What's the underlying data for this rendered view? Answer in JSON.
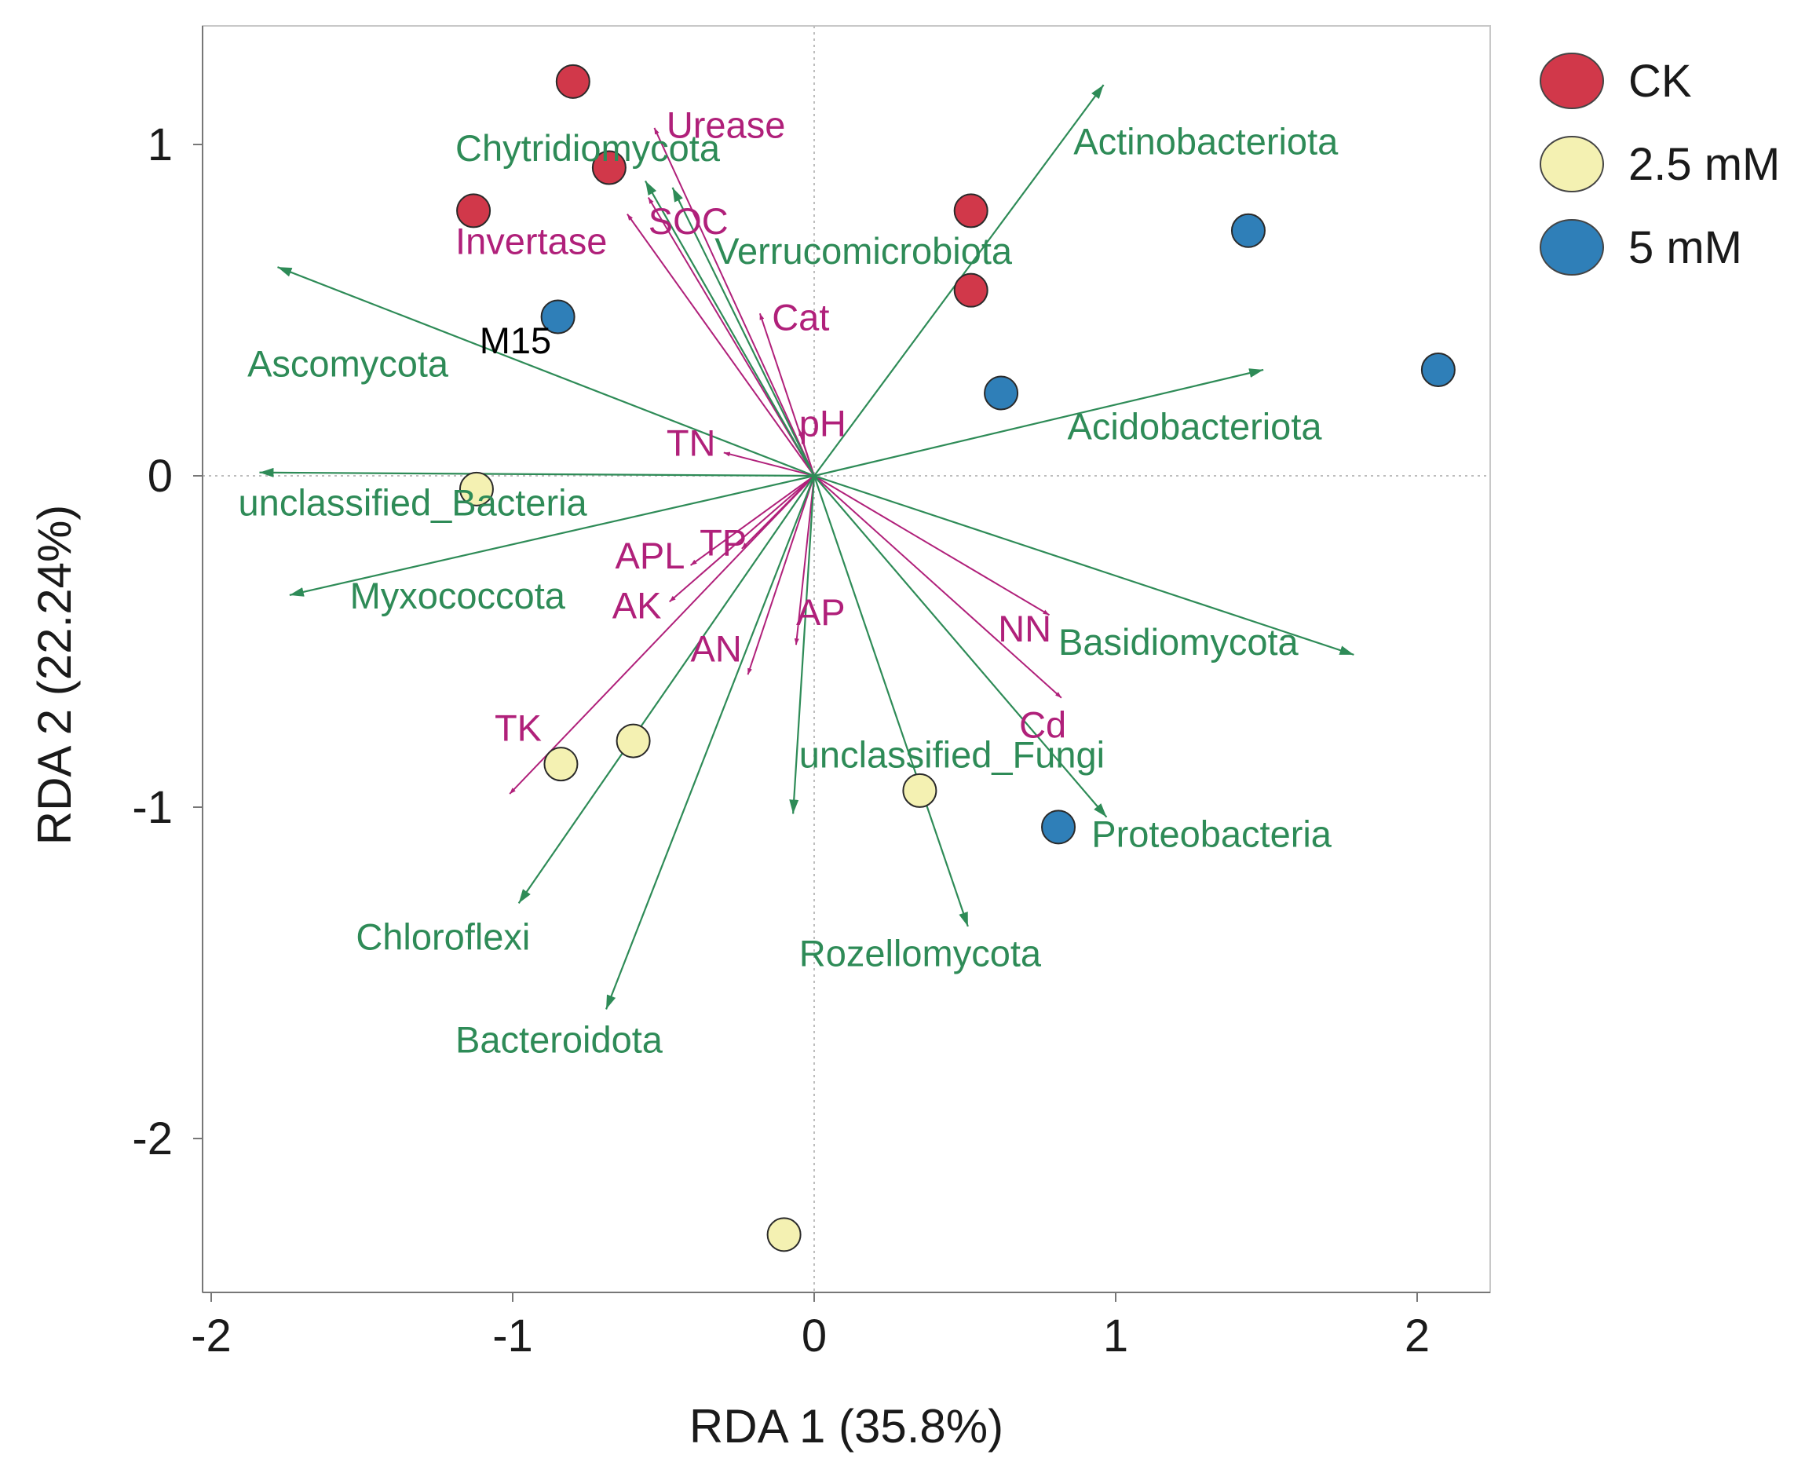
{
  "chart_data": {
    "type": "scatter",
    "subtype": "rda_biplot",
    "xlabel": "RDA 1 (35.8%)",
    "ylabel": "RDA 2 (22.24%)",
    "xlim": [
      -2.03,
      2.23
    ],
    "ylim": [
      -2.43,
      1.35
    ],
    "xticks": [
      -2,
      -1,
      0,
      1,
      2
    ],
    "yticks": [
      -2,
      -1,
      0,
      1
    ],
    "reference_lines": "dotted lines at x=0 and y=0",
    "colors": {
      "species_arrow": "#2e8b57",
      "env_arrow": "#b0207a",
      "CK": "#d1384a",
      "2.5 mM": "#f4f1b2",
      "5 mM": "#2f7fb8"
    },
    "legend": [
      {
        "label": "CK",
        "color": "#d1384a"
      },
      {
        "label": "2.5 mM",
        "color": "#f4f1b2"
      },
      {
        "label": "5 mM",
        "color": "#2f7fb8"
      }
    ],
    "samples": [
      {
        "group": "CK",
        "x": -0.8,
        "y": 1.19
      },
      {
        "group": "CK",
        "x": -0.68,
        "y": 0.93
      },
      {
        "group": "CK",
        "x": -1.13,
        "y": 0.8
      },
      {
        "group": "CK",
        "x": 0.52,
        "y": 0.8
      },
      {
        "group": "CK",
        "x": 0.52,
        "y": 0.56
      },
      {
        "group": "2.5 mM",
        "x": -1.12,
        "y": -0.04
      },
      {
        "group": "2.5 mM",
        "x": -0.84,
        "y": -0.87
      },
      {
        "group": "2.5 mM",
        "x": -0.6,
        "y": -0.8
      },
      {
        "group": "2.5 mM",
        "x": 0.35,
        "y": -0.95
      },
      {
        "group": "2.5 mM",
        "x": -0.1,
        "y": -2.29
      },
      {
        "group": "5 mM",
        "x": -0.85,
        "y": 0.48
      },
      {
        "group": "5 mM",
        "x": 0.62,
        "y": 0.25
      },
      {
        "group": "5 mM",
        "x": 1.44,
        "y": 0.74
      },
      {
        "group": "5 mM",
        "x": 2.07,
        "y": 0.32
      },
      {
        "group": "5 mM",
        "x": 0.81,
        "y": -1.06
      }
    ],
    "sample_labels": [
      {
        "text": "M15",
        "x": -1.11,
        "y": 0.37
      }
    ],
    "species": [
      {
        "name": "Actinobacteriota",
        "x": 0.96,
        "y": 1.18,
        "label_x": 0.86,
        "label_y": 0.97
      },
      {
        "name": "Acidobacteriota",
        "x": 1.49,
        "y": 0.32,
        "label_x": 0.84,
        "label_y": 0.11
      },
      {
        "name": "Basidiomycota",
        "x": 1.79,
        "y": -0.54,
        "label_x": 0.81,
        "label_y": -0.54
      },
      {
        "name": "Proteobacteria",
        "x": 0.97,
        "y": -1.03,
        "label_x": 0.92,
        "label_y": -1.12
      },
      {
        "name": "unclassified_Fungi",
        "x": -0.07,
        "y": -1.02,
        "label_x": -0.05,
        "label_y": -0.88
      },
      {
        "name": "Rozellomycota",
        "x": 0.51,
        "y": -1.36,
        "label_x": -0.05,
        "label_y": -1.48
      },
      {
        "name": "Bacteroidota",
        "x": -0.69,
        "y": -1.61,
        "label_x": -1.19,
        "label_y": -1.74
      },
      {
        "name": "Chloroflexi",
        "x": -0.98,
        "y": -1.29,
        "label_x": -1.52,
        "label_y": -1.43
      },
      {
        "name": "Myxococcota",
        "x": -1.74,
        "y": -0.36,
        "label_x": -1.54,
        "label_y": -0.4
      },
      {
        "name": "unclassified_Bacteria",
        "x": -1.84,
        "y": 0.01,
        "label_x": -1.91,
        "label_y": -0.12
      },
      {
        "name": "Ascomycota",
        "x": -1.78,
        "y": 0.63,
        "label_x": -1.88,
        "label_y": 0.3
      },
      {
        "name": "Chytridiomycota",
        "x": -0.56,
        "y": 0.89,
        "label_x": -1.19,
        "label_y": 0.95
      },
      {
        "name": "Verrucomicrobiota",
        "x": -0.47,
        "y": 0.87,
        "label_x": -0.33,
        "label_y": 0.64
      }
    ],
    "environment": [
      {
        "name": "Urease",
        "x": -0.53,
        "y": 1.05,
        "label_x": -0.49,
        "label_y": 1.02
      },
      {
        "name": "SOC",
        "x": -0.55,
        "y": 0.84,
        "label_x": -0.55,
        "label_y": 0.73
      },
      {
        "name": "Invertase",
        "x": -0.62,
        "y": 0.79,
        "label_x": -1.19,
        "label_y": 0.67
      },
      {
        "name": "Cat",
        "x": -0.18,
        "y": 0.49,
        "label_x": -0.14,
        "label_y": 0.44
      },
      {
        "name": "pH",
        "x": -0.05,
        "y": 0.14,
        "label_x": -0.05,
        "label_y": 0.12
      },
      {
        "name": "TN",
        "x": -0.3,
        "y": 0.07,
        "label_x": -0.49,
        "label_y": 0.06
      },
      {
        "name": "TP",
        "x": -0.24,
        "y": -0.22,
        "label_x": -0.38,
        "label_y": -0.24
      },
      {
        "name": "APL",
        "x": -0.41,
        "y": -0.27,
        "label_x": -0.66,
        "label_y": -0.28
      },
      {
        "name": "AK",
        "x": -0.48,
        "y": -0.38,
        "label_x": -0.67,
        "label_y": -0.43
      },
      {
        "name": "AN",
        "x": -0.22,
        "y": -0.6,
        "label_x": -0.41,
        "label_y": -0.56
      },
      {
        "name": "AP",
        "x": -0.06,
        "y": -0.51,
        "label_x": -0.06,
        "label_y": -0.45
      },
      {
        "name": "NN",
        "x": 0.78,
        "y": -0.42,
        "label_x": 0.61,
        "label_y": -0.5
      },
      {
        "name": "Cd",
        "x": 0.82,
        "y": -0.67,
        "label_x": 0.68,
        "label_y": -0.79
      },
      {
        "name": "TK",
        "x": -1.01,
        "y": -0.96,
        "label_x": -1.06,
        "label_y": -0.8
      }
    ]
  }
}
